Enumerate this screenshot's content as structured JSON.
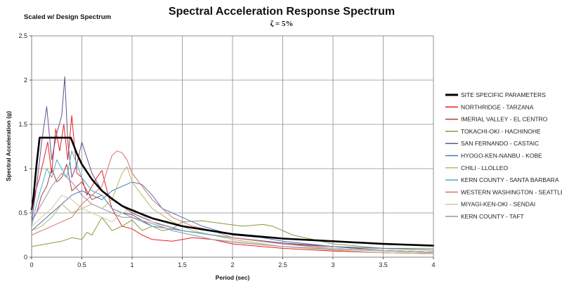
{
  "chart_data": {
    "type": "line",
    "title": "Spectral Acceleration Response Spectrum",
    "subtitle": "ζ = 5%",
    "note": "Scaled w/ Design Spectrum",
    "xlabel": "Period (sec)",
    "ylabel": "Spectral Acceleration (g)",
    "xlim": [
      0,
      4
    ],
    "ylim": [
      0,
      2.5
    ],
    "x_ticks": [
      "0",
      "0.5",
      "1",
      "1.5",
      "2",
      "2.5",
      "3",
      "3.5",
      "4"
    ],
    "y_ticks": [
      "0",
      "0.5",
      "1",
      "1.5",
      "2",
      "2.5"
    ],
    "grid": true,
    "legend_position": "right",
    "series": [
      {
        "name": "SITE SPECIFIC PARAMETERS",
        "color": "#000000",
        "width": 2.6,
        "x": [
          0,
          0.02,
          0.05,
          0.08,
          0.39,
          0.45,
          0.5,
          0.6,
          0.7,
          0.8,
          0.9,
          1.0,
          1.2,
          1.5,
          2.0,
          2.5,
          3.0,
          3.5,
          4.0
        ],
        "y": [
          0.54,
          0.7,
          1.05,
          1.35,
          1.35,
          1.17,
          1.05,
          0.88,
          0.75,
          0.66,
          0.58,
          0.53,
          0.44,
          0.35,
          0.26,
          0.21,
          0.18,
          0.15,
          0.13
        ]
      },
      {
        "name": "NORTHRIDGE - TARZANA",
        "color": "#e8201c",
        "width": 1,
        "x": [
          0,
          0.04,
          0.08,
          0.12,
          0.16,
          0.2,
          0.24,
          0.28,
          0.32,
          0.36,
          0.4,
          0.45,
          0.5,
          0.55,
          0.6,
          0.65,
          0.7,
          0.75,
          0.8,
          0.9,
          1.0,
          1.1,
          1.2,
          1.4,
          1.6,
          1.8,
          2.0,
          2.5,
          3.0,
          3.5,
          4.0
        ],
        "y": [
          0.5,
          0.75,
          0.9,
          1.1,
          1.3,
          0.95,
          1.45,
          1.2,
          1.5,
          1.1,
          1.6,
          0.95,
          0.9,
          0.7,
          0.8,
          0.9,
          0.98,
          0.75,
          0.55,
          0.35,
          0.32,
          0.25,
          0.2,
          0.18,
          0.22,
          0.2,
          0.15,
          0.1,
          0.07,
          0.05,
          0.04
        ]
      },
      {
        "name": "IMERIAL VALLEY - EL CENTRO",
        "color": "#b23a3a",
        "width": 1,
        "x": [
          0,
          0.05,
          0.1,
          0.15,
          0.2,
          0.25,
          0.3,
          0.35,
          0.4,
          0.5,
          0.6,
          0.7,
          0.8,
          0.9,
          1.0,
          1.2,
          1.5,
          1.8,
          2.0,
          2.5,
          3.0,
          3.5,
          4.0
        ],
        "y": [
          0.42,
          0.5,
          0.7,
          0.8,
          1.0,
          0.85,
          0.9,
          1.05,
          0.75,
          0.85,
          0.65,
          0.7,
          0.55,
          0.5,
          0.48,
          0.35,
          0.3,
          0.25,
          0.22,
          0.15,
          0.12,
          0.08,
          0.06
        ]
      },
      {
        "name": "TOKACHI-OKI - HACHINOHE",
        "color": "#8a9a3b",
        "width": 1,
        "x": [
          0,
          0.1,
          0.2,
          0.3,
          0.4,
          0.5,
          0.55,
          0.6,
          0.7,
          0.8,
          0.9,
          1.0,
          1.1,
          1.2,
          1.3,
          1.4,
          1.5,
          1.7,
          1.9,
          2.1,
          2.3,
          2.4,
          2.6,
          2.8,
          3.0,
          3.5,
          4.0
        ],
        "y": [
          0.12,
          0.14,
          0.16,
          0.18,
          0.22,
          0.2,
          0.28,
          0.25,
          0.45,
          0.3,
          0.35,
          0.42,
          0.3,
          0.35,
          0.3,
          0.32,
          0.4,
          0.41,
          0.38,
          0.35,
          0.37,
          0.35,
          0.25,
          0.2,
          0.15,
          0.1,
          0.1
        ]
      },
      {
        "name": "SAN FERNANDO - CASTAIC",
        "color": "#6a4f8f",
        "width": 1,
        "x": [
          0,
          0.05,
          0.1,
          0.15,
          0.2,
          0.25,
          0.3,
          0.33,
          0.36,
          0.4,
          0.45,
          0.5,
          0.6,
          0.7,
          0.8,
          1.0,
          1.2,
          1.5,
          2.0,
          2.5,
          3.0,
          3.5,
          4.0
        ],
        "y": [
          0.4,
          0.8,
          1.3,
          1.7,
          1.1,
          1.4,
          1.6,
          2.04,
          1.3,
          0.9,
          1.05,
          1.3,
          0.95,
          0.75,
          0.65,
          0.5,
          0.4,
          0.3,
          0.22,
          0.16,
          0.12,
          0.08,
          0.06
        ]
      },
      {
        "name": "HYOGO-KEN-NANBU - KOBE",
        "color": "#4a78b5",
        "width": 1,
        "x": [
          0,
          0.1,
          0.2,
          0.3,
          0.4,
          0.5,
          0.6,
          0.7,
          0.8,
          0.9,
          1.0,
          1.1,
          1.2,
          1.3,
          1.5,
          1.7,
          2.0,
          2.3,
          2.5,
          3.0,
          3.5,
          4.0
        ],
        "y": [
          0.3,
          0.4,
          0.5,
          0.6,
          0.7,
          0.75,
          0.7,
          0.65,
          0.75,
          0.8,
          0.85,
          0.82,
          0.7,
          0.55,
          0.45,
          0.35,
          0.25,
          0.22,
          0.18,
          0.12,
          0.1,
          0.08
        ]
      },
      {
        "name": "CHILI - LLOLLEO",
        "color": "#b7b86a",
        "width": 1,
        "x": [
          0,
          0.1,
          0.2,
          0.3,
          0.4,
          0.5,
          0.6,
          0.7,
          0.8,
          0.9,
          0.95,
          1.0,
          1.1,
          1.2,
          1.4,
          1.6,
          1.8,
          2.0,
          2.5,
          3.0,
          3.5,
          4.0
        ],
        "y": [
          0.3,
          0.35,
          0.45,
          0.6,
          0.5,
          0.55,
          0.6,
          0.55,
          0.65,
          0.95,
          1.02,
          0.85,
          0.7,
          0.55,
          0.4,
          0.3,
          0.25,
          0.2,
          0.12,
          0.08,
          0.05,
          0.04
        ]
      },
      {
        "name": "KERN COUNTY - SANTA BARBARA",
        "color": "#46b0c9",
        "width": 1,
        "x": [
          0,
          0.05,
          0.1,
          0.15,
          0.2,
          0.25,
          0.3,
          0.35,
          0.4,
          0.5,
          0.6,
          0.7,
          0.8,
          0.9,
          1.0,
          1.2,
          1.5,
          2.0,
          2.5,
          3.0,
          3.5,
          4.0
        ],
        "y": [
          0.35,
          0.6,
          0.8,
          1.0,
          0.9,
          1.1,
          1.0,
          0.9,
          1.2,
          0.9,
          0.75,
          0.7,
          0.55,
          0.5,
          0.45,
          0.35,
          0.3,
          0.22,
          0.15,
          0.1,
          0.08,
          0.06
        ]
      },
      {
        "name": "WESTERN WASHINGTON - SEATTLE",
        "color": "#d9706d",
        "width": 1,
        "x": [
          0,
          0.1,
          0.2,
          0.3,
          0.4,
          0.5,
          0.6,
          0.7,
          0.8,
          0.85,
          0.9,
          0.95,
          1.0,
          1.1,
          1.2,
          1.4,
          1.6,
          1.8,
          2.0,
          2.5,
          3.0,
          3.5,
          4.0
        ],
        "y": [
          0.25,
          0.3,
          0.35,
          0.4,
          0.45,
          0.6,
          0.7,
          0.8,
          1.15,
          1.2,
          1.18,
          1.1,
          0.95,
          0.8,
          0.65,
          0.45,
          0.35,
          0.3,
          0.22,
          0.15,
          0.1,
          0.08,
          0.06
        ]
      },
      {
        "name": "MIYAGI-KEN-OKI - SENDAI",
        "color": "#d8c5a0",
        "width": 1,
        "x": [
          0,
          0.1,
          0.2,
          0.3,
          0.4,
          0.5,
          0.6,
          0.7,
          0.8,
          0.9,
          1.0,
          1.2,
          1.4,
          1.6,
          1.8,
          2.0,
          2.5,
          3.0,
          3.5,
          4.0
        ],
        "y": [
          0.35,
          0.45,
          0.55,
          0.7,
          0.65,
          0.55,
          0.5,
          0.45,
          0.4,
          0.5,
          0.55,
          0.4,
          0.3,
          0.25,
          0.2,
          0.18,
          0.12,
          0.1,
          0.08,
          0.06
        ]
      },
      {
        "name": "KERN COUNTY - TAFT",
        "color": "#9a8fb4",
        "width": 1,
        "x": [
          0,
          0.1,
          0.2,
          0.3,
          0.4,
          0.5,
          0.6,
          0.7,
          0.8,
          0.9,
          1.0,
          1.2,
          1.4,
          1.6,
          1.8,
          2.0,
          2.5,
          3.0,
          3.5,
          4.0
        ],
        "y": [
          0.4,
          0.6,
          0.8,
          0.95,
          0.85,
          0.7,
          0.6,
          0.55,
          0.5,
          0.45,
          0.45,
          0.38,
          0.3,
          0.25,
          0.2,
          0.17,
          0.12,
          0.09,
          0.07,
          0.05
        ]
      }
    ]
  }
}
